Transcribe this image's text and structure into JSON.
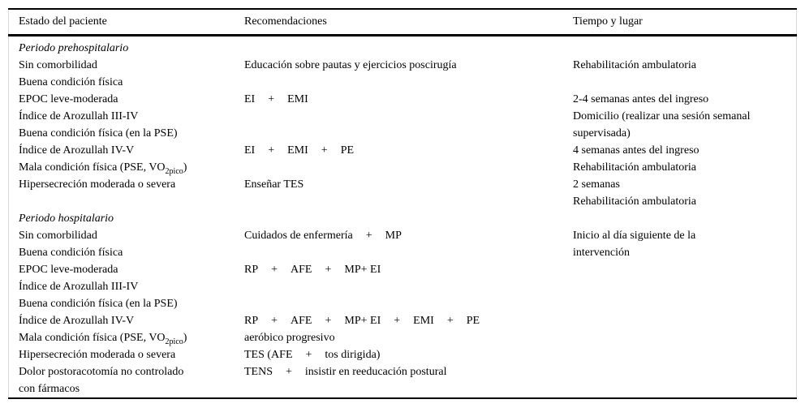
{
  "table": {
    "columns": [
      "Estado del paciente",
      "Recomendaciones",
      "Tiempo y lugar"
    ],
    "lines": [
      {
        "c1": "Periodo prehospitalario",
        "italic": true
      },
      {
        "c1": "Sin comorbilidad",
        "c2": "Educación sobre pautas y ejercicios poscirugía",
        "c3": "Rehabilitación ambulatoria"
      },
      {
        "c1": "Buena condición física"
      },
      {
        "c1": "EPOC leve-moderada",
        "c2": [
          "EI",
          "+",
          "EMI"
        ],
        "c3": "2-4 semanas antes del ingreso"
      },
      {
        "c1": "Índice de Arozullah III-IV",
        "c3": "Domicilio (realizar una sesión semanal"
      },
      {
        "c1": "Buena condición física (en la PSE)",
        "c3": "supervisada)"
      },
      {
        "c1": "Índice de Arozullah IV-V",
        "c2": [
          "EI",
          "+",
          "EMI",
          "+",
          "PE"
        ],
        "c3": "4 semanas antes del ingreso"
      },
      {
        "c1": [
          {
            "t": "Mala condición física (PSE, VO"
          },
          {
            "t": "2pico",
            "sub": true
          },
          {
            "t": ")"
          }
        ],
        "c3": "Rehabilitación ambulatoria"
      },
      {
        "c1": "Hipersecreción moderada o severa",
        "c2": "Enseñar TES",
        "c3": "2 semanas"
      },
      {
        "c3": "Rehabilitación ambulatoria"
      },
      {
        "c1": "Periodo hospitalario",
        "italic": true
      },
      {
        "c1": "Sin comorbilidad",
        "c2": [
          "Cuidados de enfermería",
          "+",
          "MP"
        ],
        "c3": "Inicio al día siguiente de la"
      },
      {
        "c1": "Buena condición física",
        "c3": "intervención"
      },
      {
        "c1": "EPOC leve-moderada",
        "c2": [
          "RP",
          "+",
          "AFE",
          "+",
          "MP+ EI"
        ]
      },
      {
        "c1": "Índice de Arozullah III-IV"
      },
      {
        "c1": "Buena condición física (en la PSE)"
      },
      {
        "c1": "Índice de Arozullah IV-V",
        "c2": [
          "RP",
          "+",
          "AFE",
          "+",
          "MP+ EI",
          "+",
          "EMI",
          "+",
          "PE"
        ]
      },
      {
        "c1": [
          {
            "t": "Mala condición física (PSE, VO"
          },
          {
            "t": "2pico",
            "sub": true
          },
          {
            "t": ")"
          }
        ],
        "c2": "aeróbico progresivo"
      },
      {
        "c1": "Hipersecreción moderada o severa",
        "c2": [
          "TES (AFE",
          "+",
          "tos dirigida)"
        ]
      },
      {
        "c1": "Dolor postoracotomía no controlado",
        "c2": [
          "TENS",
          "+",
          "insistir en reeducación postural"
        ]
      },
      {
        "c1": "con fármacos"
      }
    ],
    "colors": {
      "text": "#000000",
      "rule": "#000000",
      "side_border": "#d9d9d9",
      "background": "#ffffff"
    }
  }
}
